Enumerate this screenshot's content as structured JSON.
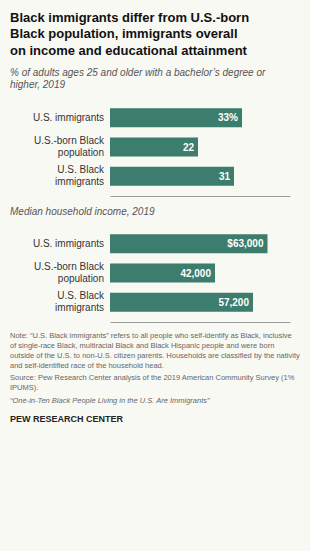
{
  "chart_data": [
    {
      "type": "bar",
      "orientation": "horizontal",
      "title": "Black immigrants differ from U.S.-born\nBlack population, immigrants overall\non income and educational attainment",
      "subtitle": "% of adults ages 25 and older with a bachelor’s degree or\nhigher, 2019",
      "categories": [
        "U.S. immigrants",
        "U.S.-born Black\npopulation",
        "U.S. Black\nimmigrants"
      ],
      "values": [
        33,
        22,
        31
      ],
      "value_labels": [
        "33%",
        "22",
        "31"
      ],
      "color": "#3d7d6e",
      "xlim": [
        0,
        45
      ],
      "data_labels": true,
      "tick_labels": "y"
    },
    {
      "type": "bar",
      "orientation": "horizontal",
      "subtitle": "Median household income, 2019",
      "categories": [
        "U.S. immigrants",
        "U.S.-born Black\npopulation",
        "U.S. Black\nimmigrants"
      ],
      "values": [
        63000,
        42000,
        57200
      ],
      "value_labels": [
        "$63,000",
        "42,000",
        "57,200"
      ],
      "color": "#3d7d6e",
      "xlim": [
        0,
        72000
      ],
      "data_labels": true,
      "tick_labels": "y",
      "annotations": [
        "Note: “U.S. Black immigrants” refers to all people who self-identify as Black, inclusive of single-race Black, multiracial Black and Black Hispanic people and were born outside of the U.S. to non-U.S. citizen parents.  Households are classified by the nativity and self-identified race of the household head.",
        "Source: Pew Research Center analysis of the 2019 American Community Survey (1% IPUMS).",
        "“One-in-Ten Black People Living in the U.S. Are Immigrants”",
        "PEW RESEARCH CENTER"
      ]
    }
  ]
}
